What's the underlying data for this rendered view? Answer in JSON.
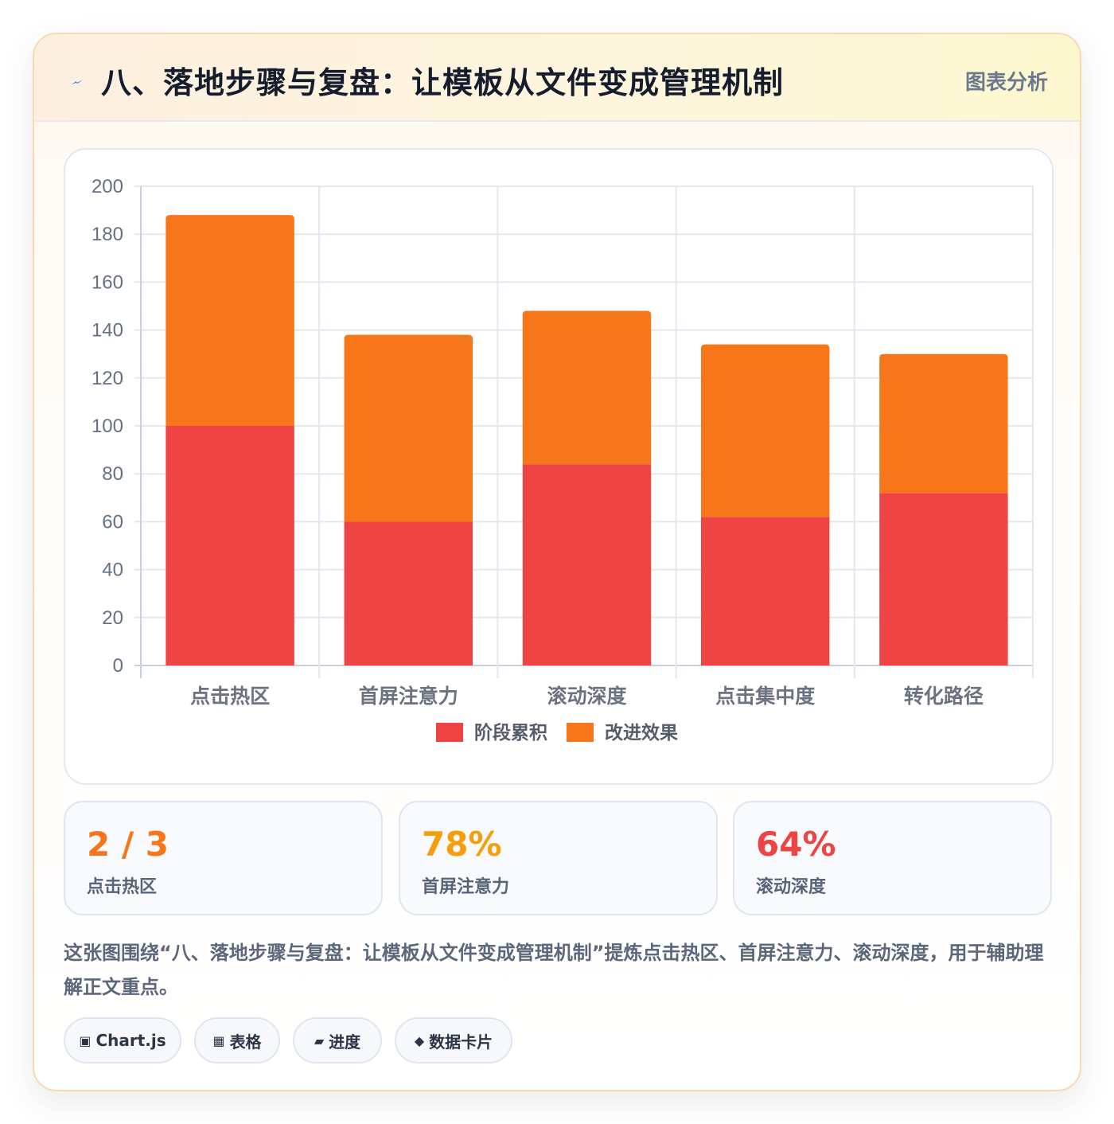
{
  "header": {
    "icon": "lightning-icon",
    "title": "八、落地步骤与复盘：让模板从文件变成管理机制",
    "tag": "图表分析"
  },
  "chart_data": {
    "type": "bar",
    "stacked": true,
    "categories": [
      "点击热区",
      "首屏注意力",
      "滚动深度",
      "点击集中度",
      "转化路径"
    ],
    "series": [
      {
        "name": "阶段累积",
        "color": "#ef4444",
        "values": [
          100,
          60,
          84,
          62,
          72
        ]
      },
      {
        "name": "改进效果",
        "color": "#f77619",
        "values": [
          88,
          78,
          64,
          72,
          58
        ]
      }
    ],
    "ylim": [
      0,
      200
    ],
    "yticks": [
      0,
      20,
      40,
      60,
      80,
      100,
      120,
      140,
      160,
      180,
      200
    ],
    "grid": true,
    "legend_position": "bottom"
  },
  "stats": [
    {
      "value": "2 / 3",
      "label": "点击热区",
      "color": "#f77619"
    },
    {
      "value": "78%",
      "label": "首屏注意力",
      "color": "#f59e0b"
    },
    {
      "value": "64%",
      "label": "滚动深度",
      "color": "#ef4444"
    }
  ],
  "description": "这张图围绕“八、落地步骤与复盘：让模板从文件变成管理机制”提炼点击热区、首屏注意力、滚动深度，用于辅助理解正文重点。",
  "chips": [
    {
      "glyph": "▣",
      "icon": "chart-icon",
      "label": "Chart.js"
    },
    {
      "glyph": "▦",
      "icon": "table-icon",
      "label": "表格"
    },
    {
      "glyph": "▰",
      "icon": "progress-icon",
      "label": "进度"
    },
    {
      "glyph": "◆",
      "icon": "data-card-icon",
      "label": "数据卡片"
    }
  ]
}
